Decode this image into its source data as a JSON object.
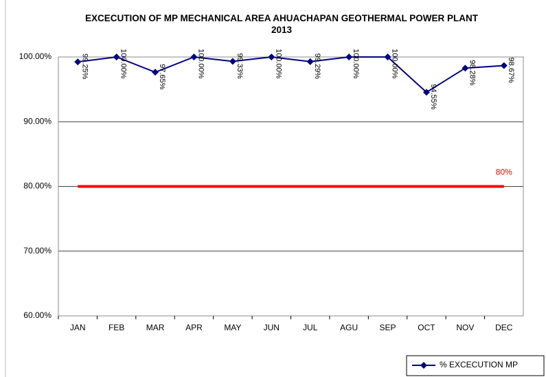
{
  "chart_data": {
    "type": "line",
    "title": "EXCECUTION OF MP MECHANICAL AREA AHUACHAPAN GEOTHERMAL POWER PLANT 2013",
    "categories": [
      "JAN",
      "FEB",
      "MAR",
      "APR",
      "MAY",
      "JUN",
      "JUL",
      "AGU",
      "SEP",
      "OCT",
      "NOV",
      "DEC"
    ],
    "series": [
      {
        "name": "% EXCECUTION MP",
        "color": "#000080",
        "values": [
          99.25,
          100.0,
          97.65,
          100.0,
          99.33,
          100.0,
          99.29,
          100.0,
          100.0,
          94.55,
          98.28,
          98.67
        ],
        "value_labels": [
          "99.25%",
          "100.00%",
          "97.65%",
          "100.00%",
          "99.33%",
          "100.00%",
          "99.29%",
          "100.00%",
          "100.00%",
          "94.55%",
          "98.28%",
          "98.67%"
        ]
      }
    ],
    "target": {
      "value": 80,
      "label": "80%",
      "color": "#ff0000"
    },
    "ylim": [
      60,
      100
    ],
    "yticks": [
      {
        "value": 60,
        "label": "60.00%"
      },
      {
        "value": 70,
        "label": "70.00%"
      },
      {
        "value": 80,
        "label": "80.00%"
      },
      {
        "value": 90,
        "label": "90.00%"
      },
      {
        "value": 100,
        "label": "100.00%"
      }
    ],
    "grid": true,
    "legend": "bottom-right"
  }
}
